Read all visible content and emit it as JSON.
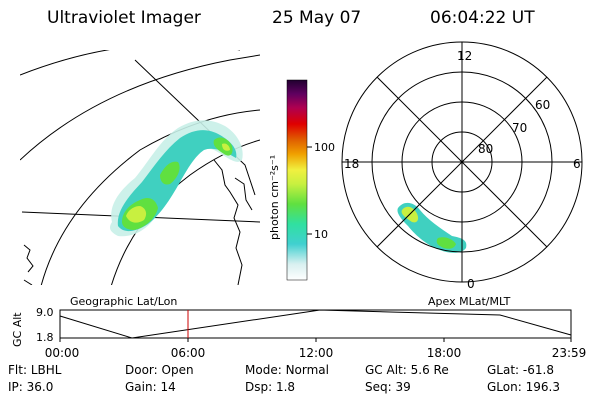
{
  "header": {
    "title": "Ultraviolet Imager",
    "date": "25 May 07",
    "time": "06:04:22 UT"
  },
  "colorbar": {
    "label": "photon cm⁻²s⁻¹",
    "ticks": [
      "100",
      "10"
    ]
  },
  "polar": {
    "mlt_labels": {
      "top": "12",
      "left": "18",
      "right": "6",
      "bottom": "0"
    },
    "mlat_labels": [
      "60",
      "70",
      "80"
    ]
  },
  "orbit": {
    "y_label": "GC Alt",
    "y_max": "9.0",
    "y_min": "1.8",
    "left_title": "Geographic Lat/Lon",
    "right_title": "Apex MLat/MLT",
    "x_ticks": [
      "00:00",
      "06:00",
      "12:00",
      "18:00",
      "23:59"
    ]
  },
  "info": {
    "row1": [
      {
        "label": "Flt:",
        "value": "LBHL"
      },
      {
        "label": "Door:",
        "value": "Open"
      },
      {
        "label": "Mode:",
        "value": "Normal"
      },
      {
        "label": "GC Alt:",
        "value": "5.6 Re"
      },
      {
        "label": "GLat:",
        "value": "-61.8"
      }
    ],
    "row2": [
      {
        "label": "IP:",
        "value": "36.0"
      },
      {
        "label": "Gain:",
        "value": "14"
      },
      {
        "label": "Dsp:",
        "value": "1.8"
      },
      {
        "label": "Seq:",
        "value": "39"
      },
      {
        "label": "GLon:",
        "value": "196.3"
      }
    ]
  },
  "colors": {
    "orbit_marker": "#cc0000",
    "scale": [
      "#ffffff",
      "#d8f0f0",
      "#40d0d0",
      "#30e0a0",
      "#60e040",
      "#c8f040",
      "#f0f040",
      "#f0a000",
      "#e06000",
      "#e00000",
      "#b00050",
      "#600060",
      "#200030"
    ]
  }
}
